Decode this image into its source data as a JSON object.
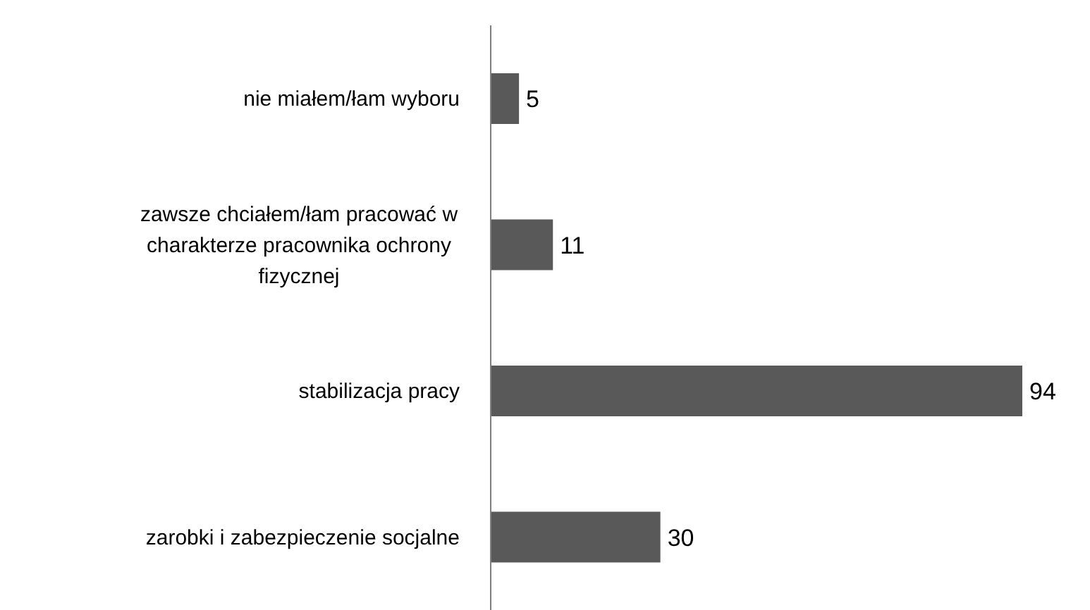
{
  "chart_data": {
    "type": "bar",
    "orientation": "horizontal",
    "categories": [
      "nie miałem/łam wyboru",
      "zawsze chciałem/łam pracować w charakterze pracownika ochrony fizycznej",
      "stabilizacja pracy",
      "zarobki i zabezpieczenie socjalne"
    ],
    "values": [
      5,
      11,
      94,
      30
    ],
    "color": "#595959",
    "data_labels": true
  }
}
